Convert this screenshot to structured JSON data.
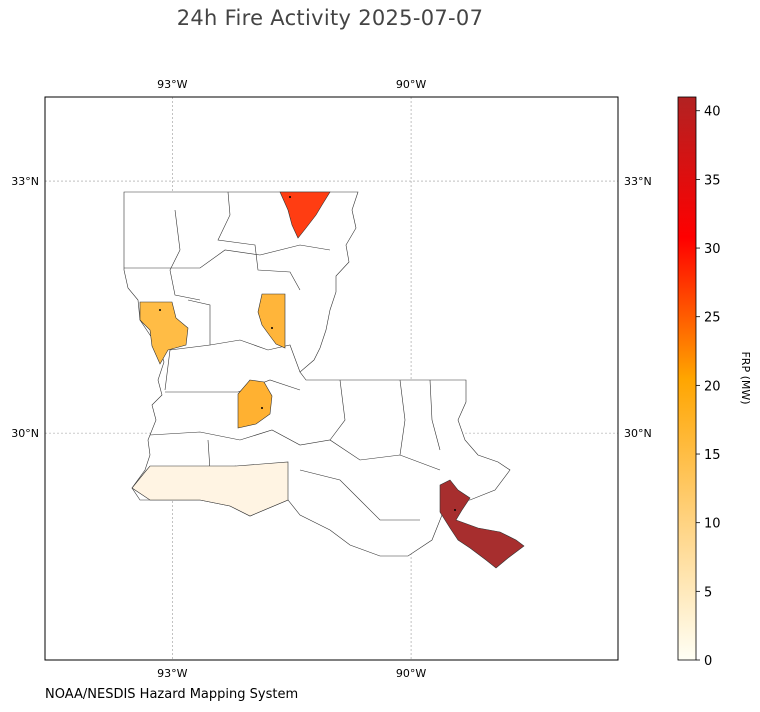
{
  "title": "24h Fire Activity 2025-07-07",
  "source": "NOAA/NESDIS Hazard Mapping System",
  "chart_data": {
    "type": "heatmap",
    "title": "24h Fire Activity 2025-07-07",
    "xlim": [
      -94.6,
      -87.4
    ],
    "ylim": [
      27.3,
      34.0
    ],
    "x_ticks": [
      {
        "value": -93,
        "label": "93°W"
      },
      {
        "value": -90,
        "label": "90°W"
      }
    ],
    "y_ticks": [
      {
        "value": 33,
        "label": "33°N"
      },
      {
        "value": 30,
        "label": "30°N"
      }
    ],
    "grid": true,
    "colorbar": {
      "label": "FRP (MW)",
      "range": [
        0,
        41
      ],
      "ticks": [
        0,
        5,
        10,
        15,
        20,
        25,
        30,
        35,
        40
      ],
      "colors": [
        "#fffff5",
        "#ffd27f",
        "#ffa500",
        "#ff0000",
        "#b22222"
      ]
    },
    "regions": [
      {
        "name": "",
        "frp": 22,
        "color": "#ff3d12"
      },
      {
        "name": "",
        "frp": 9,
        "color": "#ffbc45"
      },
      {
        "name": "",
        "frp": 10,
        "color": "#ffb53a"
      },
      {
        "name": "",
        "frp": 11,
        "color": "#ffb131"
      },
      {
        "name": "",
        "frp": 1,
        "color": "#fff4e3"
      },
      {
        "name": "",
        "frp": 40,
        "color": "#a72e2e"
      }
    ]
  }
}
